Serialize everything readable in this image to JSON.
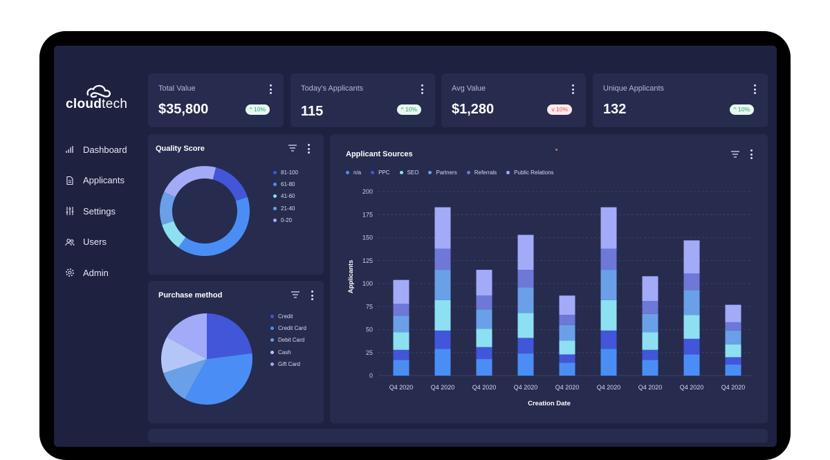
{
  "brand": {
    "name_bold": "cloud",
    "name_regular": "tech"
  },
  "nav": [
    {
      "label": "Dashboard",
      "icon": "bar-chart-icon"
    },
    {
      "label": "Applicants",
      "icon": "document-icon"
    },
    {
      "label": "Settings",
      "icon": "sliders-icon"
    },
    {
      "label": "Users",
      "icon": "users-icon"
    },
    {
      "label": "Admin",
      "icon": "gear-icon"
    }
  ],
  "kpis": [
    {
      "label": "Total Value",
      "value": "$35,800",
      "change": "10%",
      "direction": "up"
    },
    {
      "label": "Today's Applicants",
      "value": "115",
      "change": "10%",
      "direction": "up"
    },
    {
      "label": "Avg Value",
      "value": "$1,280",
      "change": "10%",
      "direction": "down"
    },
    {
      "label": "Unique Applicants",
      "value": "132",
      "change": "10%",
      "direction": "up"
    }
  ],
  "colors": {
    "c1": "#4256d9",
    "c2": "#4a8ef5",
    "c3": "#8ce0f2",
    "c4": "#6aa0e8",
    "c5": "#6d78d8",
    "c6": "#a3aaf8"
  },
  "chart_data": [
    {
      "type": "pie",
      "title": "Quality Score",
      "variant": "donut",
      "categories": [
        "81-100",
        "61-80",
        "41-60",
        "21-40",
        "0-20"
      ],
      "values": [
        16,
        40,
        10,
        12,
        22
      ]
    },
    {
      "type": "pie",
      "title": "Purchase method",
      "categories": [
        "Credit",
        "Credit Card",
        "Debit Card",
        "Cash",
        "Gift Card"
      ],
      "values": [
        23,
        35,
        12,
        13,
        17
      ]
    },
    {
      "type": "bar",
      "stacked": true,
      "title": "Applicant Sources",
      "xlabel": "Creation Date",
      "ylabel": "Applicants",
      "ylim": [
        0,
        200
      ],
      "yticks": [
        0,
        25,
        50,
        75,
        100,
        125,
        150,
        175,
        200
      ],
      "categories": [
        "Q4 2020",
        "Q4 2020",
        "Q4 2020",
        "Q4 2020",
        "Q4 2020",
        "Q4 2020",
        "Q4 2020",
        "Q4 2020",
        "Q4 2020"
      ],
      "series": [
        {
          "name": "n/a",
          "values": [
            17,
            29,
            18,
            24,
            14,
            29,
            17,
            23,
            12
          ]
        },
        {
          "name": "PPC",
          "values": [
            11,
            20,
            13,
            17,
            9,
            20,
            11,
            17,
            8
          ]
        },
        {
          "name": "SEO",
          "values": [
            19,
            33,
            20,
            27,
            15,
            33,
            19,
            26,
            14
          ]
        },
        {
          "name": "Partners",
          "values": [
            18,
            33,
            21,
            28,
            17,
            33,
            20,
            27,
            15
          ]
        },
        {
          "name": "Referrals",
          "values": [
            13,
            23,
            15,
            19,
            11,
            23,
            14,
            18,
            9
          ]
        },
        {
          "name": "Public Relations",
          "values": [
            26,
            45,
            28,
            38,
            21,
            45,
            27,
            36,
            19
          ]
        }
      ]
    }
  ]
}
